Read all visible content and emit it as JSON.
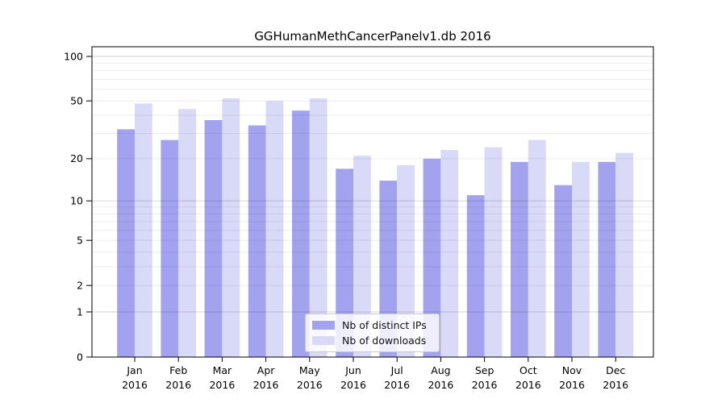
{
  "chart_data": {
    "type": "bar",
    "title": "GGHumanMethCancerPanelv1.db 2016",
    "categories": [
      "Jan",
      "Feb",
      "Mar",
      "Apr",
      "May",
      "Jun",
      "Jul",
      "Aug",
      "Sep",
      "Oct",
      "Nov",
      "Dec"
    ],
    "year": "2016",
    "series": [
      {
        "name": "Nb of distinct IPs",
        "color": "#a2a2ef",
        "values": [
          32,
          27,
          37,
          34,
          43,
          17,
          14,
          20,
          11,
          19,
          13,
          19
        ]
      },
      {
        "name": "Nb of downloads",
        "color": "#d9d9f8",
        "values": [
          48,
          44,
          52,
          50,
          52,
          21,
          18,
          23,
          24,
          27,
          19,
          22
        ]
      }
    ],
    "y_axis": {
      "scale": "log1p",
      "labeled_ticks": [
        0,
        1,
        2,
        5,
        10,
        20,
        50,
        100
      ],
      "major_grid": [
        1,
        10,
        100
      ],
      "minor_grid": [
        2,
        3,
        4,
        5,
        6,
        7,
        8,
        9,
        20,
        30,
        40,
        50,
        60,
        70,
        80,
        90
      ],
      "ylim": [
        0,
        116
      ]
    },
    "grid": {
      "major_color": "rgba(0,0,0,0.16)",
      "minor_color": "rgba(0,0,0,0.07)"
    },
    "legend": {
      "position": "lower-center"
    },
    "axis_color": "#000000"
  }
}
